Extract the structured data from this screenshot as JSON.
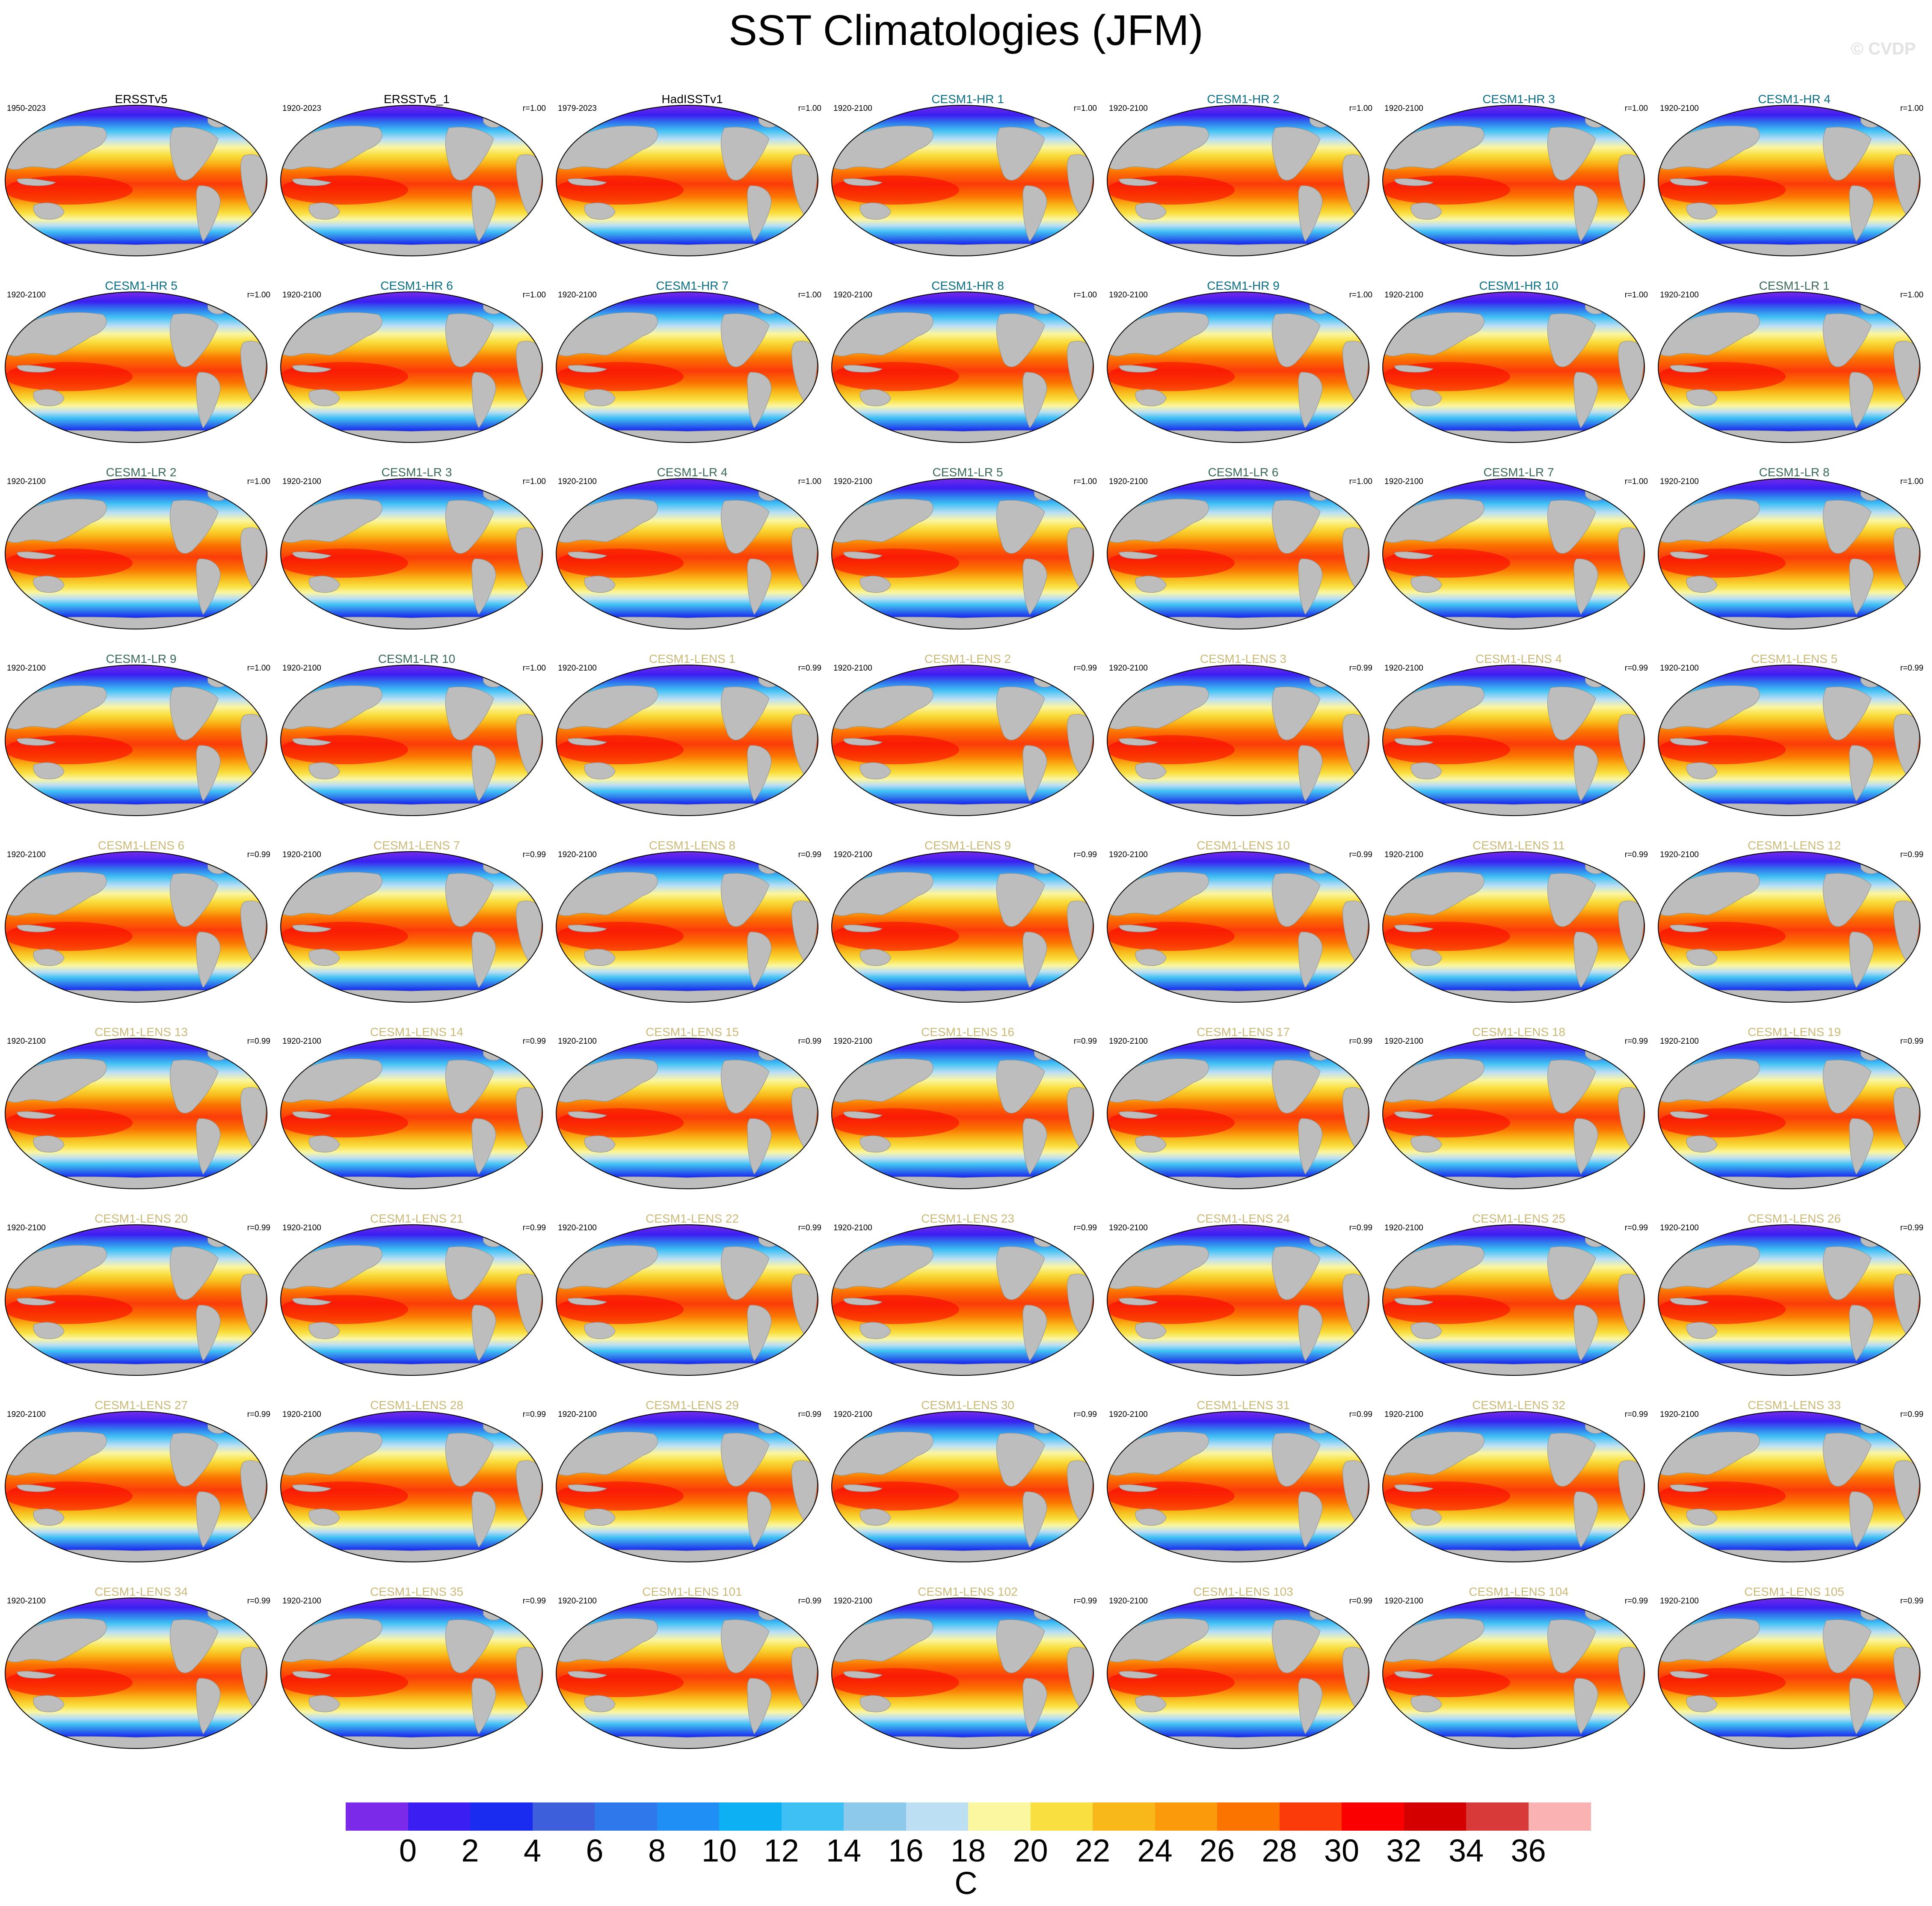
{
  "title": "SST Climatologies (JFM)",
  "credit": "© CVDP",
  "panels": [
    {
      "name": "ERSSTv5",
      "years": "1950-2023",
      "corr": "",
      "group": "obs"
    },
    {
      "name": "ERSSTv5_1",
      "years": "1920-2023",
      "corr": "r=1.00",
      "group": "obs"
    },
    {
      "name": "HadISSTv1",
      "years": "1979-2023",
      "corr": "r=1.00",
      "group": "obs"
    },
    {
      "name": "CESM1-HR 1",
      "years": "1920-2100",
      "corr": "r=1.00",
      "group": "hr"
    },
    {
      "name": "CESM1-HR 2",
      "years": "1920-2100",
      "corr": "r=1.00",
      "group": "hr"
    },
    {
      "name": "CESM1-HR 3",
      "years": "1920-2100",
      "corr": "r=1.00",
      "group": "hr"
    },
    {
      "name": "CESM1-HR 4",
      "years": "1920-2100",
      "corr": "r=1.00",
      "group": "hr"
    },
    {
      "name": "CESM1-HR 5",
      "years": "1920-2100",
      "corr": "r=1.00",
      "group": "hr"
    },
    {
      "name": "CESM1-HR 6",
      "years": "1920-2100",
      "corr": "r=1.00",
      "group": "hr"
    },
    {
      "name": "CESM1-HR 7",
      "years": "1920-2100",
      "corr": "r=1.00",
      "group": "hr"
    },
    {
      "name": "CESM1-HR 8",
      "years": "1920-2100",
      "corr": "r=1.00",
      "group": "hr"
    },
    {
      "name": "CESM1-HR 9",
      "years": "1920-2100",
      "corr": "r=1.00",
      "group": "hr"
    },
    {
      "name": "CESM1-HR 10",
      "years": "1920-2100",
      "corr": "r=1.00",
      "group": "hr"
    },
    {
      "name": "CESM1-LR 1",
      "years": "1920-2100",
      "corr": "r=1.00",
      "group": "lr"
    },
    {
      "name": "CESM1-LR 2",
      "years": "1920-2100",
      "corr": "r=1.00",
      "group": "lr"
    },
    {
      "name": "CESM1-LR 3",
      "years": "1920-2100",
      "corr": "r=1.00",
      "group": "lr"
    },
    {
      "name": "CESM1-LR 4",
      "years": "1920-2100",
      "corr": "r=1.00",
      "group": "lr"
    },
    {
      "name": "CESM1-LR 5",
      "years": "1920-2100",
      "corr": "r=1.00",
      "group": "lr"
    },
    {
      "name": "CESM1-LR 6",
      "years": "1920-2100",
      "corr": "r=1.00",
      "group": "lr"
    },
    {
      "name": "CESM1-LR 7",
      "years": "1920-2100",
      "corr": "r=1.00",
      "group": "lr"
    },
    {
      "name": "CESM1-LR 8",
      "years": "1920-2100",
      "corr": "r=1.00",
      "group": "lr"
    },
    {
      "name": "CESM1-LR 9",
      "years": "1920-2100",
      "corr": "r=1.00",
      "group": "lr"
    },
    {
      "name": "CESM1-LR 10",
      "years": "1920-2100",
      "corr": "r=1.00",
      "group": "lr"
    },
    {
      "name": "CESM1-LENS 1",
      "years": "1920-2100",
      "corr": "r=0.99",
      "group": "lens"
    },
    {
      "name": "CESM1-LENS 2",
      "years": "1920-2100",
      "corr": "r=0.99",
      "group": "lens"
    },
    {
      "name": "CESM1-LENS 3",
      "years": "1920-2100",
      "corr": "r=0.99",
      "group": "lens"
    },
    {
      "name": "CESM1-LENS 4",
      "years": "1920-2100",
      "corr": "r=0.99",
      "group": "lens"
    },
    {
      "name": "CESM1-LENS 5",
      "years": "1920-2100",
      "corr": "r=0.99",
      "group": "lens"
    },
    {
      "name": "CESM1-LENS 6",
      "years": "1920-2100",
      "corr": "r=0.99",
      "group": "lens"
    },
    {
      "name": "CESM1-LENS 7",
      "years": "1920-2100",
      "corr": "r=0.99",
      "group": "lens"
    },
    {
      "name": "CESM1-LENS 8",
      "years": "1920-2100",
      "corr": "r=0.99",
      "group": "lens"
    },
    {
      "name": "CESM1-LENS 9",
      "years": "1920-2100",
      "corr": "r=0.99",
      "group": "lens"
    },
    {
      "name": "CESM1-LENS 10",
      "years": "1920-2100",
      "corr": "r=0.99",
      "group": "lens"
    },
    {
      "name": "CESM1-LENS 11",
      "years": "1920-2100",
      "corr": "r=0.99",
      "group": "lens"
    },
    {
      "name": "CESM1-LENS 12",
      "years": "1920-2100",
      "corr": "r=0.99",
      "group": "lens"
    },
    {
      "name": "CESM1-LENS 13",
      "years": "1920-2100",
      "corr": "r=0.99",
      "group": "lens"
    },
    {
      "name": "CESM1-LENS 14",
      "years": "1920-2100",
      "corr": "r=0.99",
      "group": "lens"
    },
    {
      "name": "CESM1-LENS 15",
      "years": "1920-2100",
      "corr": "r=0.99",
      "group": "lens"
    },
    {
      "name": "CESM1-LENS 16",
      "years": "1920-2100",
      "corr": "r=0.99",
      "group": "lens"
    },
    {
      "name": "CESM1-LENS 17",
      "years": "1920-2100",
      "corr": "r=0.99",
      "group": "lens"
    },
    {
      "name": "CESM1-LENS 18",
      "years": "1920-2100",
      "corr": "r=0.99",
      "group": "lens"
    },
    {
      "name": "CESM1-LENS 19",
      "years": "1920-2100",
      "corr": "r=0.99",
      "group": "lens"
    },
    {
      "name": "CESM1-LENS 20",
      "years": "1920-2100",
      "corr": "r=0.99",
      "group": "lens"
    },
    {
      "name": "CESM1-LENS 21",
      "years": "1920-2100",
      "corr": "r=0.99",
      "group": "lens"
    },
    {
      "name": "CESM1-LENS 22",
      "years": "1920-2100",
      "corr": "r=0.99",
      "group": "lens"
    },
    {
      "name": "CESM1-LENS 23",
      "years": "1920-2100",
      "corr": "r=0.99",
      "group": "lens"
    },
    {
      "name": "CESM1-LENS 24",
      "years": "1920-2100",
      "corr": "r=0.99",
      "group": "lens"
    },
    {
      "name": "CESM1-LENS 25",
      "years": "1920-2100",
      "corr": "r=0.99",
      "group": "lens"
    },
    {
      "name": "CESM1-LENS 26",
      "years": "1920-2100",
      "corr": "r=0.99",
      "group": "lens"
    },
    {
      "name": "CESM1-LENS 27",
      "years": "1920-2100",
      "corr": "r=0.99",
      "group": "lens"
    },
    {
      "name": "CESM1-LENS 28",
      "years": "1920-2100",
      "corr": "r=0.99",
      "group": "lens"
    },
    {
      "name": "CESM1-LENS 29",
      "years": "1920-2100",
      "corr": "r=0.99",
      "group": "lens"
    },
    {
      "name": "CESM1-LENS 30",
      "years": "1920-2100",
      "corr": "r=0.99",
      "group": "lens"
    },
    {
      "name": "CESM1-LENS 31",
      "years": "1920-2100",
      "corr": "r=0.99",
      "group": "lens"
    },
    {
      "name": "CESM1-LENS 32",
      "years": "1920-2100",
      "corr": "r=0.99",
      "group": "lens"
    },
    {
      "name": "CESM1-LENS 33",
      "years": "1920-2100",
      "corr": "r=0.99",
      "group": "lens"
    },
    {
      "name": "CESM1-LENS 34",
      "years": "1920-2100",
      "corr": "r=0.99",
      "group": "lens"
    },
    {
      "name": "CESM1-LENS 35",
      "years": "1920-2100",
      "corr": "r=0.99",
      "group": "lens"
    },
    {
      "name": "CESM1-LENS 101",
      "years": "1920-2100",
      "corr": "r=0.99",
      "group": "lens"
    },
    {
      "name": "CESM1-LENS 102",
      "years": "1920-2100",
      "corr": "r=0.99",
      "group": "lens"
    },
    {
      "name": "CESM1-LENS 103",
      "years": "1920-2100",
      "corr": "r=0.99",
      "group": "lens"
    },
    {
      "name": "CESM1-LENS 104",
      "years": "1920-2100",
      "corr": "r=0.99",
      "group": "lens"
    },
    {
      "name": "CESM1-LENS 105",
      "years": "1920-2100",
      "corr": "r=0.99",
      "group": "lens"
    }
  ],
  "group_colors": {
    "obs": "#000000",
    "hr": "#0a6e84",
    "lr": "#3a6b5a",
    "lens": "#cbb978"
  },
  "colorbar": {
    "unit": "C",
    "colors": [
      "#7a2ae8",
      "#3b1ff2",
      "#1a2cf0",
      "#3d5fdc",
      "#2f78ec",
      "#1f8ff6",
      "#0eb0f4",
      "#3fc0f4",
      "#8cc9ea",
      "#bcdff4",
      "#fbf6a0",
      "#f9df40",
      "#f9b81a",
      "#fb9a0a",
      "#fb7400",
      "#fb3c0a",
      "#fa0000",
      "#d40000",
      "#d83a3a",
      "#fbb2b2"
    ],
    "ticks": [
      "0",
      "2",
      "4",
      "6",
      "8",
      "10",
      "12",
      "14",
      "16",
      "18",
      "20",
      "22",
      "24",
      "26",
      "28",
      "30",
      "32",
      "34",
      "36"
    ]
  },
  "chart_data": {
    "type": "heatmap",
    "title": "SST Climatologies (JFM)",
    "variable": "sea surface temperature",
    "season": "JFM",
    "unit": "C",
    "levels": [
      0,
      2,
      4,
      6,
      8,
      10,
      12,
      14,
      16,
      18,
      20,
      22,
      24,
      26,
      28,
      30,
      32,
      34,
      36
    ],
    "n_panels": 63,
    "layout": "9 rows x 7 columns",
    "projection": "Robinson (global, Pacific-centered)",
    "land_color": "#bdbdbd"
  }
}
